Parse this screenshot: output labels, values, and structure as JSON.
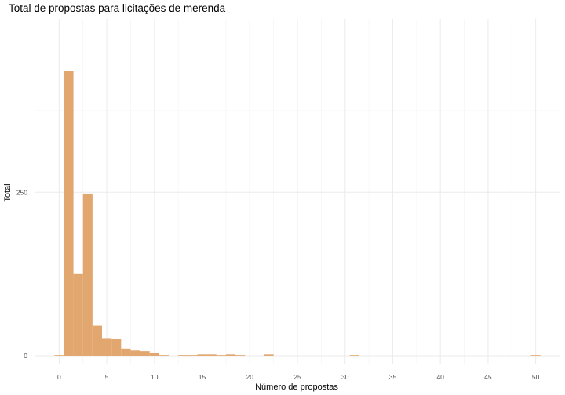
{
  "chart_data": {
    "type": "bar",
    "title": "Total de propostas para licitações de merenda",
    "xlabel": "Número de propostas",
    "ylabel": "Total",
    "bin_width": 1,
    "xlim": [
      -2.5,
      52.5
    ],
    "ylim": [
      -12,
      515
    ],
    "x_ticks": [
      0,
      5,
      10,
      15,
      20,
      25,
      30,
      35,
      40,
      45,
      50
    ],
    "y_ticks": [
      0,
      250
    ],
    "grid": true,
    "bar_color": "#e2a76f",
    "bins": [
      {
        "x": 0,
        "count": 1
      },
      {
        "x": 1,
        "count": 435
      },
      {
        "x": 2,
        "count": 126
      },
      {
        "x": 3,
        "count": 248
      },
      {
        "x": 4,
        "count": 46
      },
      {
        "x": 5,
        "count": 27
      },
      {
        "x": 6,
        "count": 26
      },
      {
        "x": 7,
        "count": 11
      },
      {
        "x": 8,
        "count": 8
      },
      {
        "x": 9,
        "count": 7
      },
      {
        "x": 10,
        "count": 4
      },
      {
        "x": 11,
        "count": 1
      },
      {
        "x": 13,
        "count": 1
      },
      {
        "x": 14,
        "count": 1
      },
      {
        "x": 15,
        "count": 2
      },
      {
        "x": 16,
        "count": 2
      },
      {
        "x": 17,
        "count": 1
      },
      {
        "x": 18,
        "count": 2
      },
      {
        "x": 19,
        "count": 1
      },
      {
        "x": 22,
        "count": 2
      },
      {
        "x": 31,
        "count": 1
      },
      {
        "x": 50,
        "count": 1
      }
    ]
  }
}
